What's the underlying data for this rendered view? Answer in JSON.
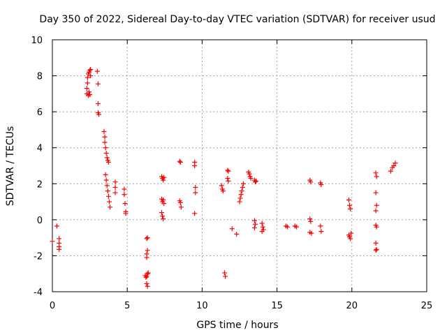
{
  "chart_data": {
    "type": "scatter",
    "title": "Day 350 of 2022, Sidereal Day-to-day VTEC variation (SDTVAR) for receiver usud",
    "xlabel": "GPS time / hours",
    "ylabel": "SDTVAR / TECUs",
    "xlim": [
      0,
      25
    ],
    "ylim": [
      -4,
      10
    ],
    "xticks": [
      "0",
      "5",
      "10",
      "15",
      "20",
      "25"
    ],
    "yticks": [
      "-4",
      "-2",
      "0",
      "2",
      "4",
      "6",
      "8",
      "10"
    ],
    "grid": true,
    "marker": "+",
    "color": "#ff0000",
    "series": [
      {
        "name": "SDTVAR",
        "points": [
          [
            0.0,
            -1.2
          ],
          [
            0.3,
            -0.35
          ],
          [
            0.45,
            -1.05
          ],
          [
            0.45,
            -1.3
          ],
          [
            0.45,
            -1.5
          ],
          [
            0.45,
            -1.65
          ],
          [
            2.3,
            7.0
          ],
          [
            2.3,
            7.3
          ],
          [
            2.35,
            7.6
          ],
          [
            2.35,
            7.9
          ],
          [
            2.4,
            8.1
          ],
          [
            2.4,
            6.9
          ],
          [
            2.45,
            8.2
          ],
          [
            2.45,
            7.1
          ],
          [
            2.5,
            8.3
          ],
          [
            2.5,
            6.95
          ],
          [
            2.55,
            8.35
          ],
          [
            2.55,
            8.0
          ],
          [
            3.0,
            8.25
          ],
          [
            3.05,
            7.55
          ],
          [
            3.05,
            6.45
          ],
          [
            3.05,
            5.95
          ],
          [
            3.1,
            5.85
          ],
          [
            3.45,
            4.9
          ],
          [
            3.5,
            4.6
          ],
          [
            3.5,
            4.3
          ],
          [
            3.55,
            4.0
          ],
          [
            3.6,
            3.7
          ],
          [
            3.65,
            3.45
          ],
          [
            3.7,
            3.3
          ],
          [
            3.75,
            3.2
          ],
          [
            3.55,
            2.5
          ],
          [
            3.6,
            2.2
          ],
          [
            3.65,
            1.9
          ],
          [
            3.7,
            1.6
          ],
          [
            3.75,
            1.3
          ],
          [
            3.8,
            1.0
          ],
          [
            3.85,
            0.7
          ],
          [
            4.2,
            2.1
          ],
          [
            4.2,
            1.8
          ],
          [
            4.2,
            1.5
          ],
          [
            4.8,
            1.7
          ],
          [
            4.8,
            1.4
          ],
          [
            4.85,
            0.9
          ],
          [
            4.9,
            0.45
          ],
          [
            4.9,
            0.35
          ],
          [
            6.2,
            -3.1
          ],
          [
            6.25,
            -3.2
          ],
          [
            6.3,
            -3.15
          ],
          [
            6.35,
            -3.0
          ],
          [
            6.4,
            -2.95
          ],
          [
            6.3,
            -3.55
          ],
          [
            6.35,
            -3.7
          ],
          [
            6.3,
            -2.1
          ],
          [
            6.3,
            -1.9
          ],
          [
            6.35,
            -1.7
          ],
          [
            6.35,
            -1.0
          ],
          [
            6.3,
            -1.05
          ],
          [
            7.3,
            2.4
          ],
          [
            7.35,
            2.3
          ],
          [
            7.4,
            2.2
          ],
          [
            7.45,
            2.35
          ],
          [
            7.3,
            1.15
          ],
          [
            7.35,
            1.0
          ],
          [
            7.4,
            1.1
          ],
          [
            7.45,
            0.9
          ],
          [
            7.3,
            0.4
          ],
          [
            7.35,
            0.2
          ],
          [
            7.4,
            0.05
          ],
          [
            8.5,
            3.25
          ],
          [
            8.55,
            3.2
          ],
          [
            8.5,
            1.05
          ],
          [
            8.55,
            0.95
          ],
          [
            8.6,
            0.7
          ],
          [
            9.5,
            3.2
          ],
          [
            9.5,
            3.0
          ],
          [
            9.55,
            1.8
          ],
          [
            9.55,
            1.5
          ],
          [
            9.5,
            0.35
          ],
          [
            11.3,
            1.9
          ],
          [
            11.35,
            1.7
          ],
          [
            11.4,
            1.6
          ],
          [
            11.5,
            -2.95
          ],
          [
            11.55,
            -3.15
          ],
          [
            11.7,
            2.75
          ],
          [
            11.75,
            2.7
          ],
          [
            11.7,
            2.3
          ],
          [
            11.75,
            2.15
          ],
          [
            12.0,
            -0.5
          ],
          [
            12.3,
            -0.8
          ],
          [
            12.5,
            1.0
          ],
          [
            12.55,
            1.2
          ],
          [
            12.6,
            1.4
          ],
          [
            12.65,
            1.6
          ],
          [
            12.7,
            1.8
          ],
          [
            12.75,
            2.0
          ],
          [
            13.1,
            2.65
          ],
          [
            13.15,
            2.55
          ],
          [
            13.2,
            2.4
          ],
          [
            13.25,
            2.3
          ],
          [
            13.5,
            2.2
          ],
          [
            13.55,
            2.1
          ],
          [
            13.6,
            2.15
          ],
          [
            13.5,
            -0.05
          ],
          [
            13.55,
            -0.25
          ],
          [
            13.5,
            -0.45
          ],
          [
            14.0,
            -0.2
          ],
          [
            14.05,
            -0.4
          ],
          [
            14.1,
            -0.55
          ],
          [
            14.0,
            -0.65
          ],
          [
            15.6,
            -0.35
          ],
          [
            15.7,
            -0.4
          ],
          [
            16.2,
            -0.35
          ],
          [
            16.3,
            -0.4
          ],
          [
            17.2,
            2.2
          ],
          [
            17.25,
            2.1
          ],
          [
            17.2,
            0.05
          ],
          [
            17.25,
            -0.1
          ],
          [
            17.2,
            -0.7
          ],
          [
            17.3,
            -0.75
          ],
          [
            17.9,
            2.05
          ],
          [
            17.95,
            1.95
          ],
          [
            17.9,
            -0.35
          ],
          [
            17.95,
            -0.65
          ],
          [
            19.8,
            1.1
          ],
          [
            19.85,
            0.8
          ],
          [
            19.9,
            0.6
          ],
          [
            19.8,
            -0.85
          ],
          [
            19.85,
            -0.95
          ],
          [
            19.9,
            -1.05
          ],
          [
            19.95,
            -0.75
          ],
          [
            21.6,
            2.6
          ],
          [
            21.65,
            2.4
          ],
          [
            21.6,
            1.5
          ],
          [
            21.65,
            0.8
          ],
          [
            21.6,
            0.5
          ],
          [
            21.6,
            -0.3
          ],
          [
            21.65,
            -0.4
          ],
          [
            21.6,
            -1.3
          ],
          [
            21.65,
            -1.65
          ],
          [
            21.6,
            -1.7
          ],
          [
            22.6,
            2.7
          ],
          [
            22.7,
            2.9
          ],
          [
            22.8,
            3.0
          ],
          [
            22.9,
            3.15
          ]
        ]
      }
    ]
  }
}
